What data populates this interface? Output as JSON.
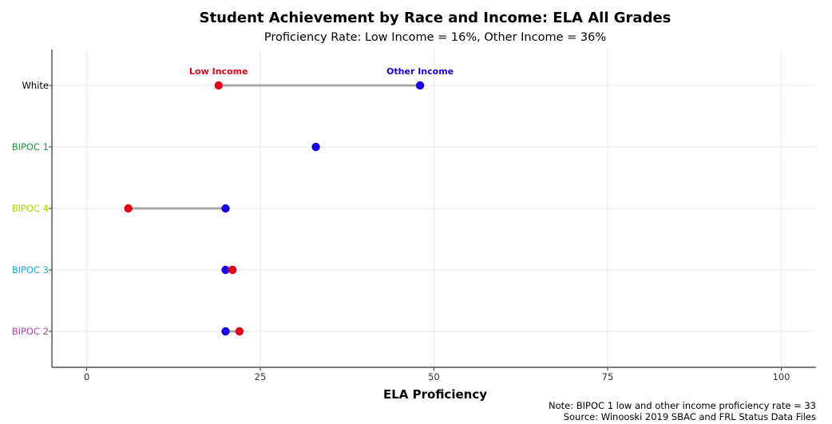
{
  "chart_data": {
    "type": "scatter",
    "title": "Student Achievement by Race and Income: ELA All Grades",
    "subtitle": "Proficiency Rate: Low Income = 16%, Other Income = 36%",
    "xlabel": "ELA Proficiency",
    "ylabel": "",
    "xlim": [
      -5,
      105
    ],
    "xticks": [
      0,
      25,
      50,
      75,
      100
    ],
    "xtick_labels": [
      "0",
      "25",
      "50",
      "75",
      "100"
    ],
    "grid": true,
    "categories": [
      "White",
      "BIPOC 1",
      "BIPOC 4",
      "BIPOC 3",
      "BIPOC 2"
    ],
    "category_colors": [
      "#000000",
      "#1a9641",
      "#a6d500",
      "#1aaedb",
      "#b73fa3"
    ],
    "series": [
      {
        "name": "Low Income",
        "color": "#e3001b",
        "values": [
          19,
          null,
          6,
          21,
          22
        ]
      },
      {
        "name": "Other Income",
        "color": "#1a00e6",
        "values": [
          48,
          33,
          20,
          20,
          20
        ]
      }
    ],
    "legend_position": "above White row",
    "notes": [
      "Note: BIPOC 1 low and other income proficiency rate = 33",
      "Source: Winooski 2019 SBAC and FRL Status Data Files"
    ]
  }
}
